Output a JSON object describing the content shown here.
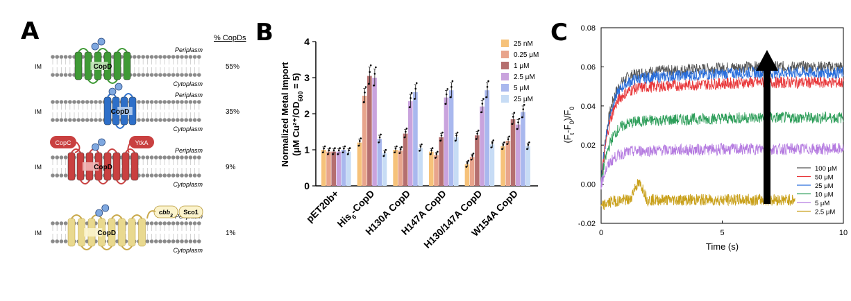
{
  "panelA": {
    "label": "A",
    "header": "% CopDs",
    "membrane_label": "IM",
    "periplasm": "Periplasm",
    "cytoplasm": "Cytoplasm",
    "rows": [
      {
        "percent": "55%",
        "protein": "CopD",
        "color": "#3f9a36",
        "light": "#bfe3b5"
      },
      {
        "percent": "35%",
        "protein": "CopD",
        "color": "#2e6fc8",
        "light": "#b7cff0"
      },
      {
        "percent": "9%",
        "protein": "CopD",
        "color": "#c94040",
        "light": "#f2b5b5",
        "partners": [
          "CopC",
          "YtkA"
        ]
      },
      {
        "percent": "1%",
        "protein": "CopD",
        "color": "#e9d98f",
        "light": "#fbf3cc",
        "partners": [
          "cbb",
          "Sco1"
        ],
        "partner_sub": "3"
      }
    ]
  },
  "panelB": {
    "label": "B",
    "chart_data": {
      "type": "bar",
      "ylabel_line1": "Normalized Metal Import",
      "ylabel_line2": "(μM Cu²⁺/OD",
      "ylabel_sub": "600",
      "ylabel_end": " = 5)",
      "ylim": [
        0,
        4
      ],
      "yticks": [
        0,
        1,
        2,
        3,
        4
      ],
      "categories": [
        "pET20b+",
        "His6-CopD",
        "H130A CopD",
        "H147A CopD",
        "H130/147A CopD",
        "W154A CopD"
      ],
      "series": [
        {
          "name": "25 nM",
          "color": "#f6c27a",
          "values": [
            1.0,
            1.2,
            1.0,
            0.95,
            0.6,
            1.1
          ]
        },
        {
          "name": "0.25 μM",
          "color": "#e8a48c",
          "values": [
            0.95,
            2.5,
            0.98,
            0.85,
            0.8,
            1.25
          ]
        },
        {
          "name": "1 μM",
          "color": "#b56f6f",
          "values": [
            0.95,
            3.05,
            1.45,
            1.35,
            1.4,
            1.85
          ]
        },
        {
          "name": "2.5 μM",
          "color": "#c9a3dd",
          "values": [
            0.95,
            3.0,
            2.35,
            2.45,
            2.2,
            1.7
          ]
        },
        {
          "name": "5 μM",
          "color": "#a9b8ee",
          "values": [
            1.0,
            1.3,
            2.6,
            2.65,
            2.65,
            2.05
          ]
        },
        {
          "name": "25 μM",
          "color": "#c7dcf5",
          "values": [
            0.95,
            0.9,
            1.05,
            1.35,
            1.15,
            1.1
          ]
        }
      ]
    }
  },
  "panelC": {
    "label": "C",
    "chart_data": {
      "type": "line",
      "xlabel": "Time (s)",
      "ylabel": "(F",
      "ylabel_sub": "t",
      "ylabel_mid": "-F",
      "ylabel_sub2": "0",
      "ylabel_end": ")/F",
      "ylabel_sub3": "0",
      "xlim": [
        0,
        10
      ],
      "ylim": [
        -0.02,
        0.08
      ],
      "xticks": [
        0,
        5,
        10
      ],
      "yticks": [
        "-0.02",
        "0.00",
        "0.02",
        "0.04",
        "0.06",
        "0.08"
      ],
      "series": [
        {
          "name": "100 μM",
          "color": "#555555",
          "plateau": 0.06,
          "end": 10
        },
        {
          "name": "50 μM",
          "color": "#e8383b",
          "plateau": 0.052,
          "end": 10
        },
        {
          "name": "25 μM",
          "color": "#2a6fdc",
          "plateau": 0.057,
          "end": 10
        },
        {
          "name": "10 μM",
          "color": "#2e9e5a",
          "plateau": 0.034,
          "end": 10
        },
        {
          "name": "5 μM",
          "color": "#b57be0",
          "plateau": 0.018,
          "end": 10
        },
        {
          "name": "2.5 μM",
          "color": "#c9a01a",
          "plateau": -0.01,
          "end": 8
        }
      ]
    }
  }
}
